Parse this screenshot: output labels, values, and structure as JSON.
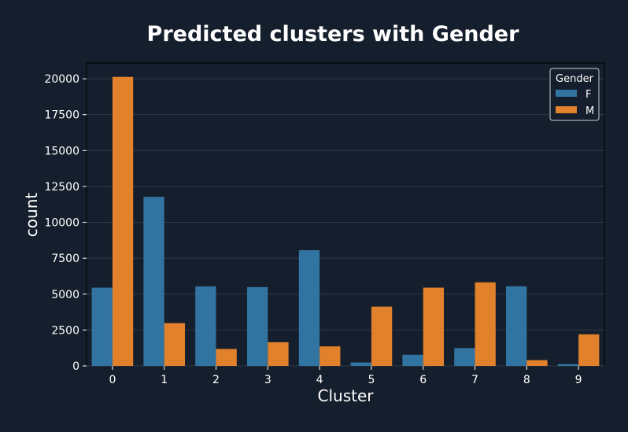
{
  "colors": {
    "background": "#151e2c",
    "plot_background": "#141e2c",
    "text": "#ffffff",
    "grid": "#2e3947",
    "series_F": "#3274a1",
    "series_M": "#e1812c"
  },
  "chart_data": {
    "type": "bar",
    "title": "Predicted clusters with Gender",
    "xlabel": "Cluster",
    "ylabel": "count",
    "categories": [
      "0",
      "1",
      "2",
      "3",
      "4",
      "5",
      "6",
      "7",
      "8",
      "9"
    ],
    "ylim": [
      0,
      21100
    ],
    "yticks": [
      0,
      2500,
      5000,
      7500,
      10000,
      12500,
      15000,
      17500,
      20000
    ],
    "grid": true,
    "legend": {
      "title": "Gender",
      "placement": "top-right"
    },
    "series": [
      {
        "name": "F",
        "color": "#3274a1",
        "values": [
          5450,
          11780,
          5540,
          5490,
          8060,
          240,
          780,
          1240,
          5550,
          120
        ]
      },
      {
        "name": "M",
        "color": "#e1812c",
        "values": [
          20130,
          2980,
          1180,
          1650,
          1360,
          4130,
          5450,
          5820,
          400,
          2200
        ]
      }
    ]
  }
}
